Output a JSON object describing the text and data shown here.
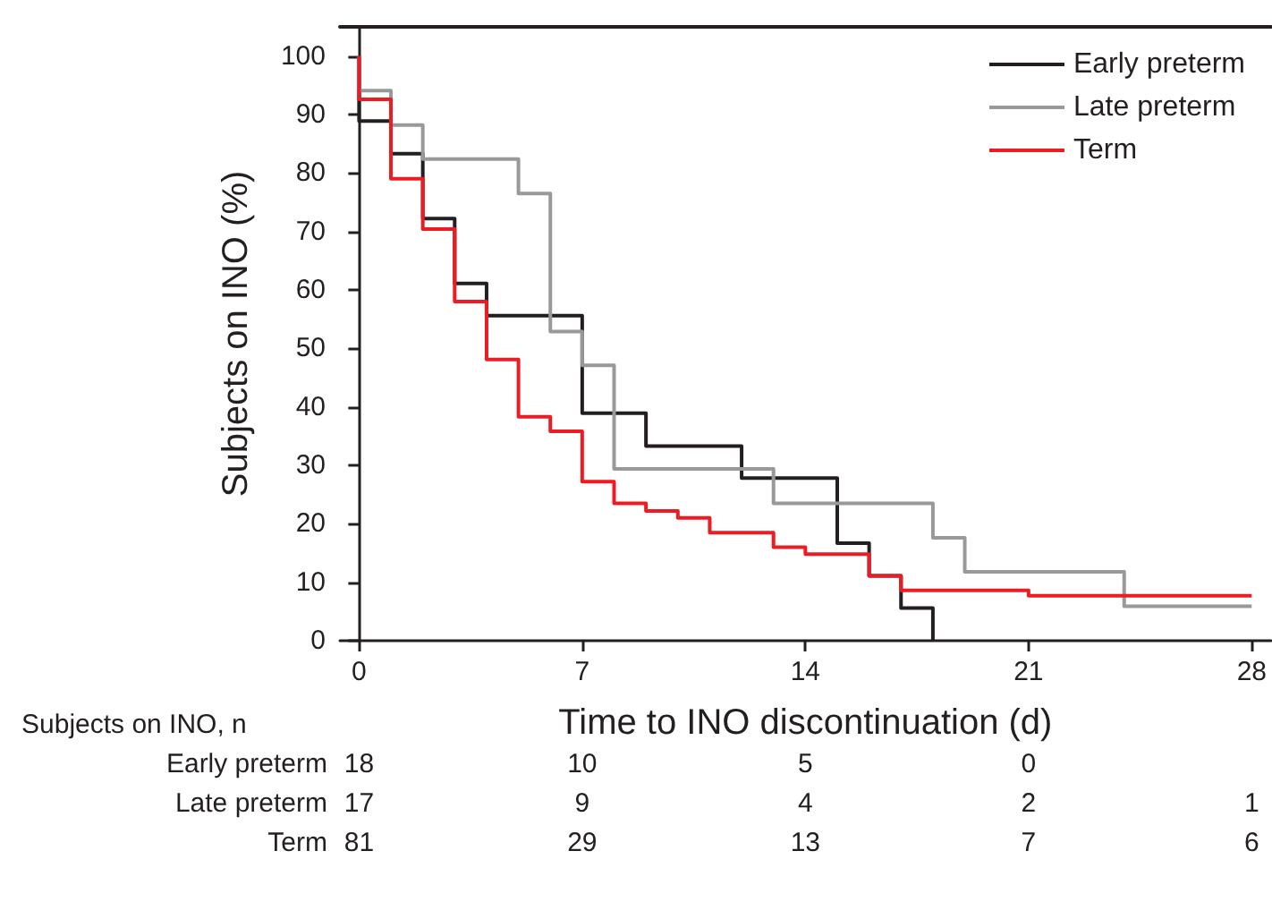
{
  "chart_data": {
    "type": "step",
    "xlabel": "Time to INO discontinuation (d)",
    "ylabel": "Subjects on INO (%)",
    "xlim": [
      -0.6,
      28.6
    ],
    "xticks": [
      0,
      7,
      14,
      21,
      28
    ],
    "ylim": [
      0,
      105
    ],
    "yticks": [
      0,
      10,
      20,
      30,
      40,
      50,
      60,
      70,
      80,
      90,
      100
    ],
    "grid": false,
    "legend": "top right",
    "marker": "none",
    "line_style": "solid",
    "series": [
      {
        "name": "Early preterm",
        "color": "#231f20",
        "x": [
          0,
          0,
          1,
          2,
          3,
          4,
          7,
          9,
          12,
          15,
          16,
          17,
          18
        ],
        "values": [
          100,
          88.9,
          83.3,
          72.2,
          61.1,
          55.6,
          38.9,
          33.3,
          27.8,
          16.7,
          11.1,
          5.6,
          0
        ]
      },
      {
        "name": "Late preterm",
        "color": "#98999b",
        "x": [
          0,
          0,
          1,
          2,
          5,
          6,
          7,
          8,
          13,
          18,
          19,
          24,
          28
        ],
        "values": [
          100,
          94.1,
          88.2,
          82.4,
          76.5,
          52.9,
          47.1,
          29.4,
          23.5,
          17.6,
          11.8,
          5.9,
          5.9
        ]
      },
      {
        "name": "Term",
        "color": "#ed1c24",
        "x": [
          0,
          0,
          1,
          2,
          3,
          4,
          5,
          6,
          7,
          8,
          9,
          10,
          11,
          13,
          14,
          16,
          17,
          21,
          28
        ],
        "values": [
          100,
          92.6,
          79.0,
          70.4,
          58.0,
          48.1,
          38.3,
          35.8,
          27.2,
          23.5,
          22.2,
          21.0,
          18.5,
          16.0,
          14.8,
          11.1,
          8.6,
          7.7,
          7.7
        ]
      }
    ],
    "annotations": [
      "Subjects on INO, n",
      "Early preterm",
      "18",
      "10",
      "5",
      "0",
      "Late preterm",
      "17",
      "9",
      "4",
      "2",
      "1",
      "Term",
      "81",
      "29",
      "13",
      "7",
      "6"
    ]
  }
}
